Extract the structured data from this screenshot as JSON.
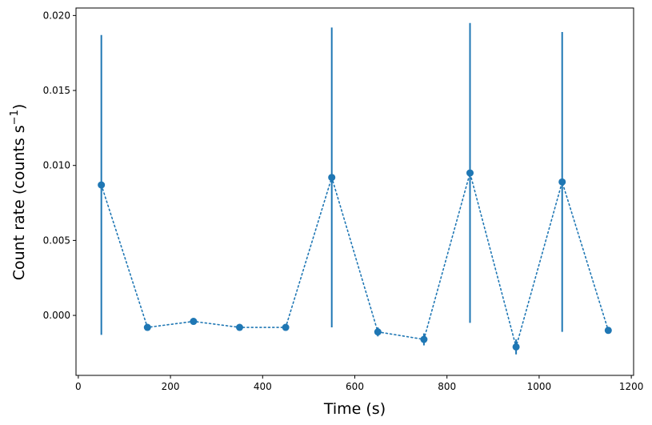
{
  "chart_data": {
    "type": "scatter",
    "title": "",
    "xlabel": "Time (s)",
    "ylabel_prefix": "Count rate (counts s",
    "ylabel_exponent": "−1",
    "ylabel_suffix": ")",
    "xlim": [
      -5,
      1205
    ],
    "ylim": [
      -0.004,
      0.0205
    ],
    "xticks": [
      0,
      200,
      400,
      600,
      800,
      1000,
      1200
    ],
    "xtick_labels": [
      "0",
      "200",
      "400",
      "600",
      "800",
      "1000",
      "1200"
    ],
    "yticks": [
      0.0,
      0.005,
      0.01,
      0.015,
      0.02
    ],
    "ytick_labels": [
      "0.000",
      "0.005",
      "0.010",
      "0.015",
      "0.020"
    ],
    "grid": false,
    "marker": "circle",
    "line_style": "dotted",
    "series": [
      {
        "x": [
          50,
          150,
          250,
          350,
          450,
          550,
          650,
          750,
          850,
          950,
          1050,
          1150
        ],
        "y": [
          0.0087,
          -0.0008,
          -0.0004,
          -0.0008,
          -0.0008,
          0.0092,
          -0.0011,
          -0.0016,
          0.0095,
          -0.0021,
          0.0089,
          -0.001
        ],
        "yerr": [
          0.01,
          0.0002,
          0.0002,
          0.0002,
          0.0002,
          0.01,
          0.0003,
          0.0004,
          0.01,
          0.0005,
          0.01,
          0.0002
        ],
        "color": "#1f77b4"
      }
    ]
  }
}
